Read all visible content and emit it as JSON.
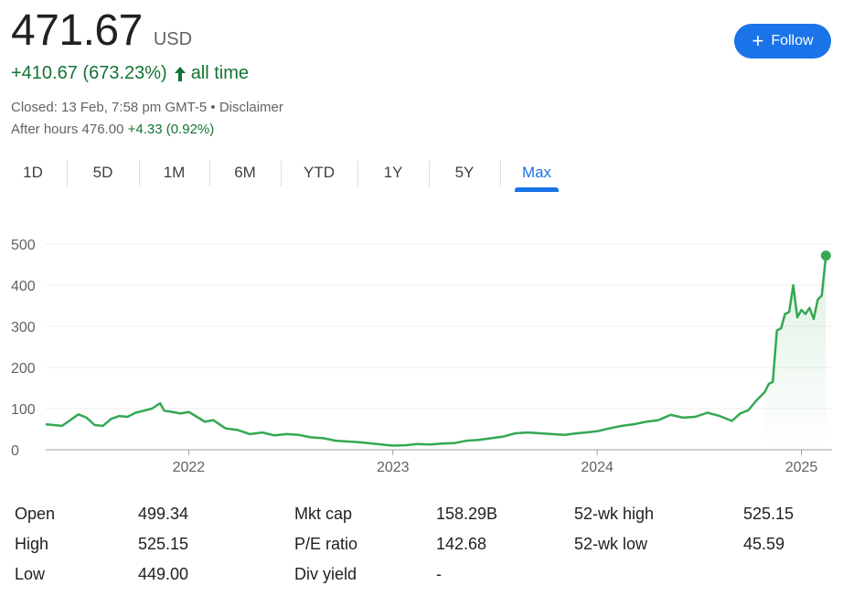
{
  "quote": {
    "price": "471.67",
    "currency": "USD",
    "change": "+410.67 (673.23%)",
    "change_period": "all time",
    "closed_text": "Closed: 13 Feb, 7:58 pm GMT-5 • Disclaimer",
    "after_hours_label": "After hours 476.00",
    "after_hours_change": "+4.33 (0.92%)"
  },
  "follow_button": {
    "label": "Follow"
  },
  "tabs": [
    {
      "label": "1D"
    },
    {
      "label": "5D"
    },
    {
      "label": "1M"
    },
    {
      "label": "6M"
    },
    {
      "label": "YTD"
    },
    {
      "label": "1Y"
    },
    {
      "label": "5Y"
    },
    {
      "label": "Max",
      "active": true
    }
  ],
  "chart_data": {
    "type": "area",
    "title": "",
    "xlabel": "",
    "ylabel": "",
    "x_tick_labels": [
      "2022",
      "2023",
      "2024",
      "2025"
    ],
    "y_tick_labels": [
      "0",
      "100",
      "200",
      "300",
      "400",
      "500"
    ],
    "ylim": [
      0,
      500
    ],
    "xlim": [
      2021.3,
      2025.15
    ],
    "grid": true,
    "line_color": "#34a853",
    "series": [
      {
        "x": [
          2021.3,
          2021.38,
          2021.42,
          2021.46,
          2021.5,
          2021.54,
          2021.58,
          2021.62,
          2021.66,
          2021.7,
          2021.74,
          2021.78,
          2021.82,
          2021.86,
          2021.88,
          2021.92,
          2021.96,
          2022.0,
          2022.04,
          2022.08,
          2022.12,
          2022.18,
          2022.24,
          2022.3,
          2022.36,
          2022.42,
          2022.48,
          2022.54,
          2022.6,
          2022.66,
          2022.72,
          2022.78,
          2022.84,
          2022.9,
          2022.96,
          2023.0,
          2023.06,
          2023.12,
          2023.18,
          2023.24,
          2023.3,
          2023.36,
          2023.42,
          2023.48,
          2023.54,
          2023.6,
          2023.66,
          2023.72,
          2023.78,
          2023.84,
          2023.9,
          2023.96,
          2024.0,
          2024.06,
          2024.12,
          2024.18,
          2024.24,
          2024.3,
          2024.36,
          2024.42,
          2024.48,
          2024.54,
          2024.6,
          2024.66,
          2024.7,
          2024.74,
          2024.78,
          2024.82,
          2024.84,
          2024.86,
          2024.88,
          2024.9,
          2024.92,
          2024.94,
          2024.96,
          2024.98,
          2025.0,
          2025.02,
          2025.04,
          2025.06,
          2025.08,
          2025.1,
          2025.12
        ],
        "y": [
          62,
          58,
          72,
          86,
          78,
          60,
          58,
          75,
          82,
          80,
          90,
          95,
          100,
          113,
          95,
          92,
          88,
          92,
          80,
          68,
          72,
          52,
          48,
          38,
          42,
          35,
          38,
          36,
          30,
          28,
          22,
          20,
          18,
          15,
          12,
          10,
          11,
          14,
          13,
          15,
          16,
          22,
          24,
          28,
          32,
          40,
          42,
          40,
          38,
          36,
          40,
          43,
          45,
          52,
          58,
          62,
          68,
          72,
          85,
          78,
          80,
          90,
          82,
          70,
          88,
          96,
          120,
          140,
          160,
          165,
          290,
          295,
          330,
          335,
          400,
          322,
          340,
          330,
          345,
          318,
          365,
          375,
          472
        ]
      }
    ],
    "last_point": {
      "x": 2025.12,
      "y": 472
    }
  },
  "stats": [
    {
      "label": "Open",
      "value": "499.34"
    },
    {
      "label": "High",
      "value": "525.15"
    },
    {
      "label": "Low",
      "value": "449.00"
    },
    {
      "label": "Mkt cap",
      "value": "158.29B"
    },
    {
      "label": "P/E ratio",
      "value": "142.68"
    },
    {
      "label": "Div yield",
      "value": "-"
    },
    {
      "label": "52-wk high",
      "value": "525.15"
    },
    {
      "label": "52-wk low",
      "value": "45.59"
    }
  ]
}
